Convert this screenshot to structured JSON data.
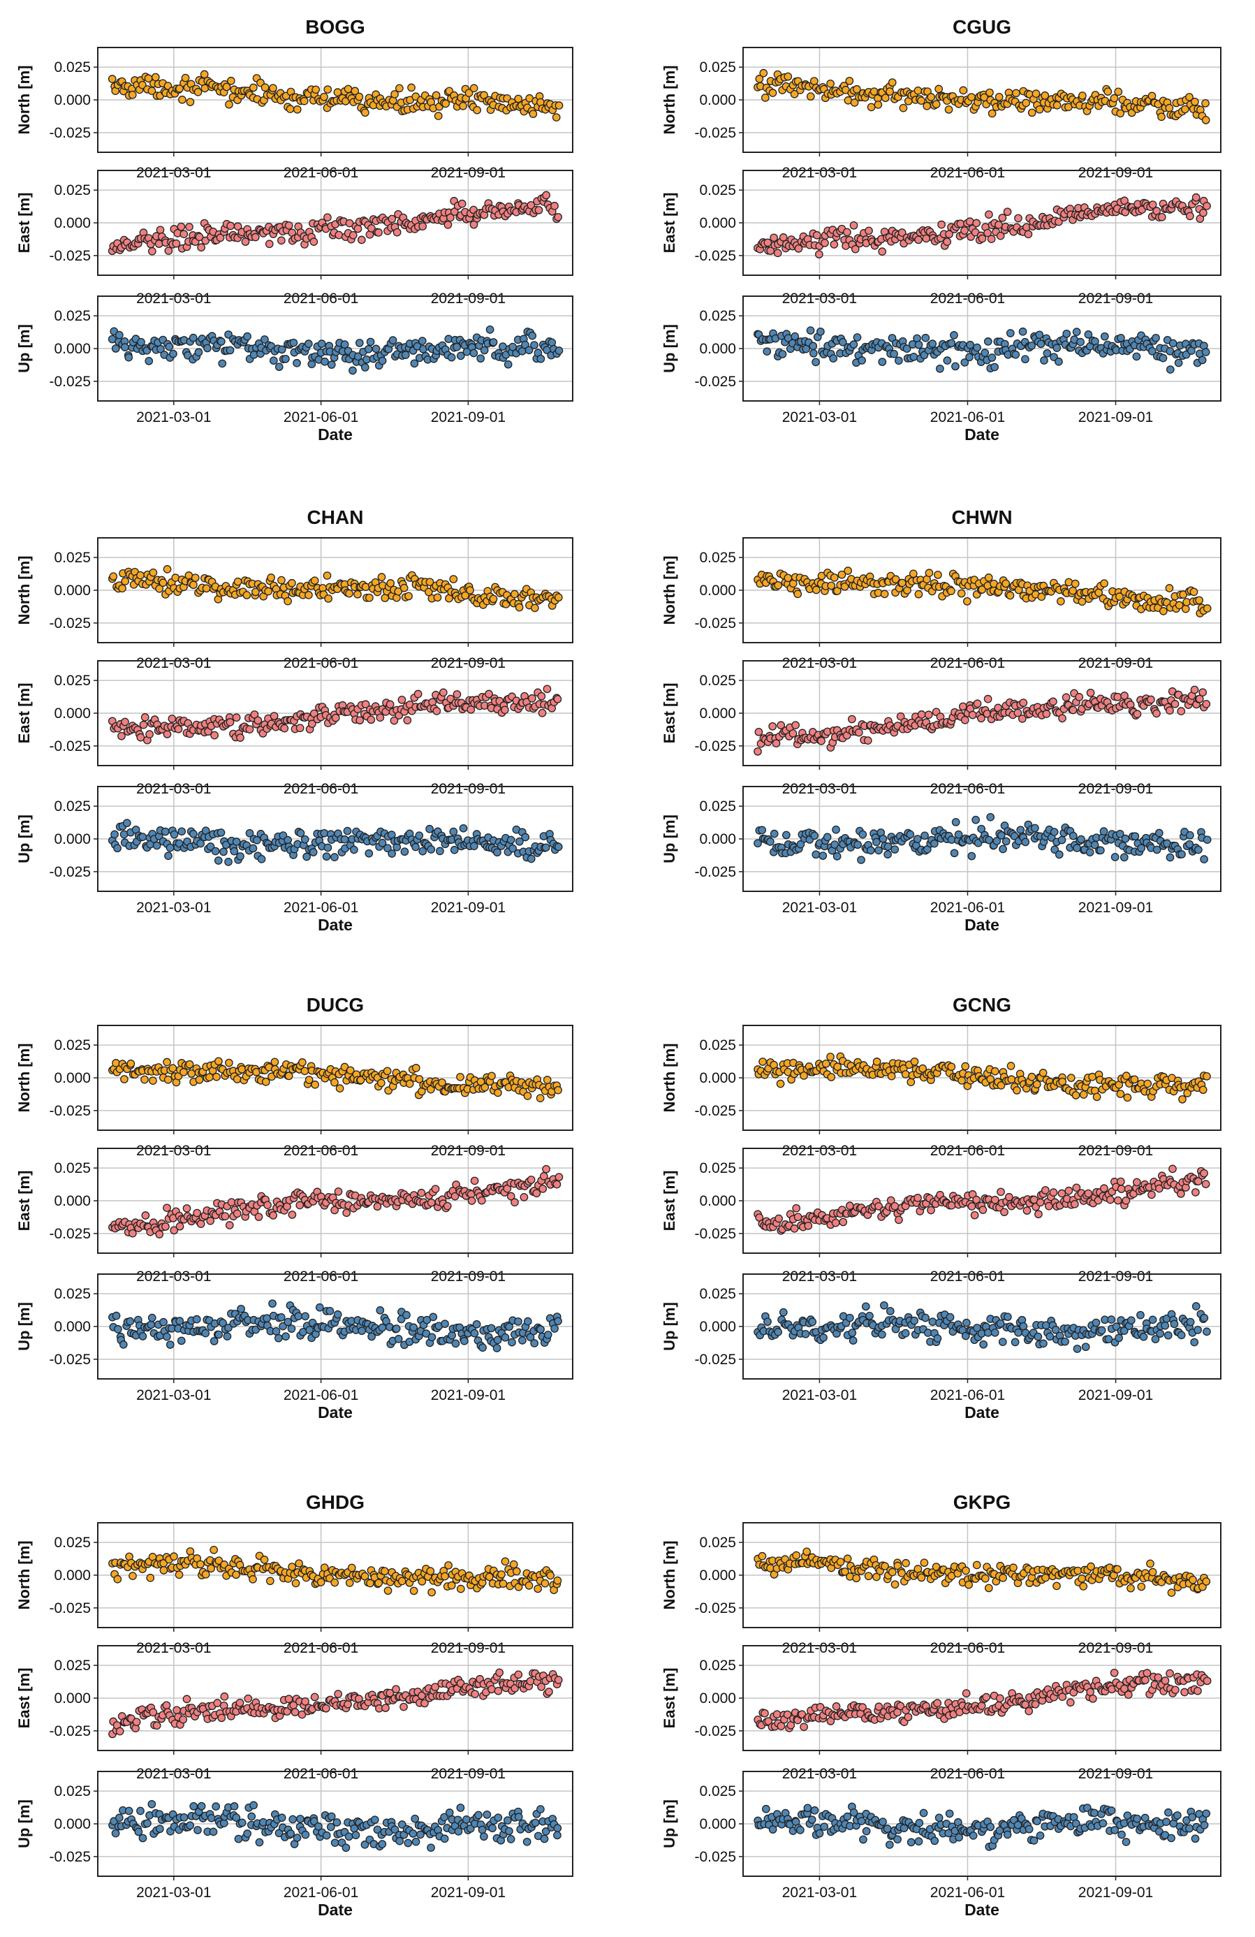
{
  "figure": {
    "north_label": "North [m]",
    "east_label": "East [m]",
    "up_label": "Up [m]",
    "x_label": "Date",
    "colors": {
      "north": "#f5a623",
      "east": "#f08080",
      "up": "#4f86b4",
      "marker_edge": "#222222",
      "grid": "#c4c4c4",
      "axes": "#222222"
    }
  },
  "chart_data": [
    {
      "type": "scatter",
      "title": "BOGG",
      "xlabel": "Date",
      "ylim": [
        -0.04,
        0.04
      ],
      "y_ticks": [
        "0.025",
        "0.000",
        "-0.025"
      ],
      "x_ticks": [
        "2021-03-01",
        "2021-06-01",
        "2021-09-01"
      ],
      "series": [
        {
          "name": "North [m]",
          "trend": [
            0.01,
            -0.006
          ],
          "noise": 0.006,
          "n": 230
        },
        {
          "name": "East [m]",
          "trend": [
            -0.02,
            0.013
          ],
          "noise": 0.006,
          "n": 230
        },
        {
          "name": "Up [m]",
          "trend": [
            0.0,
            -0.002
          ],
          "noise": 0.008,
          "n": 230
        }
      ]
    },
    {
      "type": "scatter",
      "title": "CGUG",
      "xlabel": "Date",
      "ylim": [
        -0.04,
        0.04
      ],
      "y_ticks": [
        "0.025",
        "0.000",
        "-0.025"
      ],
      "x_ticks": [
        "2021-03-01",
        "2021-06-01",
        "2021-09-01"
      ],
      "series": [
        {
          "name": "North [m]",
          "trend": [
            0.01,
            -0.008
          ],
          "noise": 0.006,
          "n": 230
        },
        {
          "name": "East [m]",
          "trend": [
            -0.02,
            0.014
          ],
          "noise": 0.006,
          "n": 230
        },
        {
          "name": "Up [m]",
          "trend": [
            0.001,
            -0.002
          ],
          "noise": 0.008,
          "n": 230
        }
      ]
    },
    {
      "type": "scatter",
      "title": "CHAN",
      "xlabel": "Date",
      "ylim": [
        -0.04,
        0.04
      ],
      "y_ticks": [
        "0.025",
        "0.000",
        "-0.025"
      ],
      "x_ticks": [
        "2021-03-01",
        "2021-06-01",
        "2021-09-01"
      ],
      "series": [
        {
          "name": "North [m]",
          "trend": [
            0.009,
            -0.006
          ],
          "noise": 0.006,
          "n": 230
        },
        {
          "name": "East [m]",
          "trend": [
            -0.015,
            0.012
          ],
          "noise": 0.006,
          "n": 230
        },
        {
          "name": "Up [m]",
          "trend": [
            0.0,
            -0.005
          ],
          "noise": 0.008,
          "n": 230
        }
      ]
    },
    {
      "type": "scatter",
      "title": "CHWN",
      "xlabel": "Date",
      "ylim": [
        -0.04,
        0.04
      ],
      "y_ticks": [
        "0.025",
        "0.000",
        "-0.025"
      ],
      "x_ticks": [
        "2021-03-01",
        "2021-06-01",
        "2021-09-01"
      ],
      "series": [
        {
          "name": "North [m]",
          "trend": [
            0.01,
            -0.008
          ],
          "noise": 0.006,
          "n": 230
        },
        {
          "name": "East [m]",
          "trend": [
            -0.02,
            0.015
          ],
          "noise": 0.006,
          "n": 230
        },
        {
          "name": "Up [m]",
          "trend": [
            0.0,
            -0.002
          ],
          "noise": 0.008,
          "n": 230
        }
      ]
    },
    {
      "type": "scatter",
      "title": "DUCG",
      "xlabel": "Date",
      "ylim": [
        -0.04,
        0.04
      ],
      "y_ticks": [
        "0.025",
        "0.000",
        "-0.025"
      ],
      "x_ticks": [
        "2021-03-01",
        "2021-06-01",
        "2021-09-01"
      ],
      "series": [
        {
          "name": "North [m]",
          "trend": [
            0.009,
            -0.007
          ],
          "noise": 0.006,
          "n": 230
        },
        {
          "name": "East [m]",
          "trend": [
            -0.018,
            0.014
          ],
          "noise": 0.006,
          "n": 230
        },
        {
          "name": "Up [m]",
          "trend": [
            0.001,
            -0.002
          ],
          "noise": 0.008,
          "n": 230
        }
      ]
    },
    {
      "type": "scatter",
      "title": "GCNG",
      "xlabel": "Date",
      "ylim": [
        -0.04,
        0.04
      ],
      "y_ticks": [
        "0.025",
        "0.000",
        "-0.025"
      ],
      "x_ticks": [
        "2021-03-01",
        "2021-06-01",
        "2021-09-01"
      ],
      "series": [
        {
          "name": "North [m]",
          "trend": [
            0.009,
            -0.008
          ],
          "noise": 0.006,
          "n": 230
        },
        {
          "name": "East [m]",
          "trend": [
            -0.017,
            0.014
          ],
          "noise": 0.006,
          "n": 230
        },
        {
          "name": "Up [m]",
          "trend": [
            0.0,
            -0.003
          ],
          "noise": 0.008,
          "n": 230
        }
      ]
    },
    {
      "type": "scatter",
      "title": "GHDG",
      "xlabel": "Date",
      "ylim": [
        -0.04,
        0.04
      ],
      "y_ticks": [
        "0.025",
        "0.000",
        "-0.025"
      ],
      "x_ticks": [
        "2021-03-01",
        "2021-06-01",
        "2021-09-01"
      ],
      "series": [
        {
          "name": "North [m]",
          "trend": [
            0.009,
            -0.006
          ],
          "noise": 0.006,
          "n": 230
        },
        {
          "name": "East [m]",
          "trend": [
            -0.02,
            0.014
          ],
          "noise": 0.006,
          "n": 230
        },
        {
          "name": "Up [m]",
          "trend": [
            0.0,
            -0.004
          ],
          "noise": 0.009,
          "n": 230
        }
      ]
    },
    {
      "type": "scatter",
      "title": "GKPG",
      "xlabel": "Date",
      "ylim": [
        -0.04,
        0.04
      ],
      "y_ticks": [
        "0.025",
        "0.000",
        "-0.025"
      ],
      "x_ticks": [
        "2021-03-01",
        "2021-06-01",
        "2021-09-01"
      ],
      "series": [
        {
          "name": "North [m]",
          "trend": [
            0.01,
            -0.006
          ],
          "noise": 0.006,
          "n": 230
        },
        {
          "name": "East [m]",
          "trend": [
            -0.02,
            0.014
          ],
          "noise": 0.006,
          "n": 230
        },
        {
          "name": "Up [m]",
          "trend": [
            0.0,
            -0.003
          ],
          "noise": 0.008,
          "n": 230
        }
      ]
    }
  ]
}
